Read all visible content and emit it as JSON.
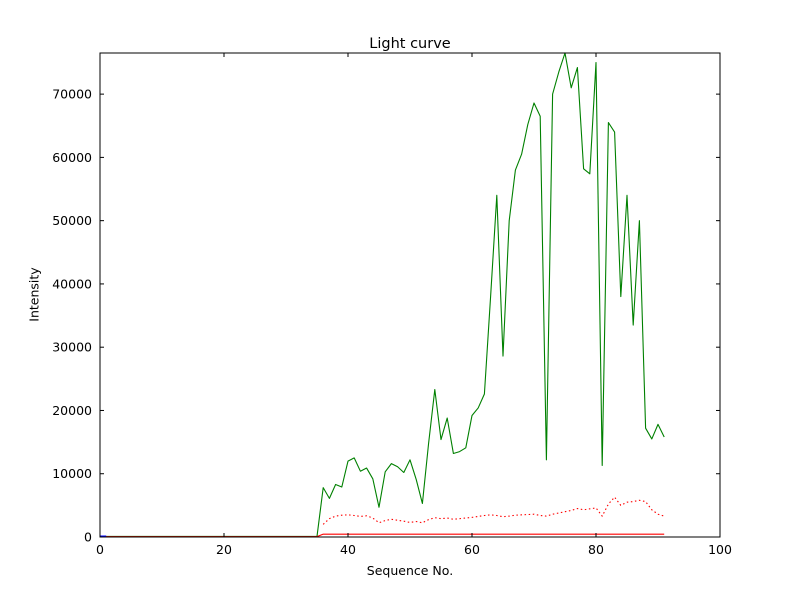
{
  "chart_data": {
    "type": "line",
    "title": "Light curve",
    "xlabel": "Sequence No.",
    "ylabel": "Intensity",
    "xlim": [
      0,
      100
    ],
    "ylim": [
      0,
      76500
    ],
    "xticks": [
      0,
      20,
      40,
      60,
      80,
      100
    ],
    "yticks": [
      0,
      10000,
      20000,
      30000,
      40000,
      50000,
      60000,
      70000
    ],
    "grid": false,
    "legend": false,
    "frame_color": "#000000",
    "background_color": "#ffffff",
    "series": [
      {
        "name": "target-intensity-green-solid",
        "color": "#008000",
        "style": "solid",
        "x": [
          0,
          35,
          36,
          37,
          38,
          39,
          40,
          41,
          42,
          43,
          44,
          45,
          46,
          47,
          48,
          49,
          50,
          51,
          52,
          53,
          54,
          55,
          56,
          57,
          58,
          59,
          60,
          61,
          62,
          63,
          64,
          65,
          66,
          67,
          68,
          69,
          70,
          71,
          72,
          73,
          74,
          75,
          76,
          77,
          78,
          79,
          80,
          81,
          82,
          83,
          84,
          85,
          86,
          87,
          88,
          89,
          90,
          91
        ],
        "y": [
          100,
          100,
          7800,
          6100,
          8300,
          7900,
          12000,
          12500,
          10400,
          10900,
          9200,
          4700,
          10300,
          11600,
          11100,
          10200,
          12200,
          9100,
          5300,
          14800,
          23300,
          15400,
          18800,
          13200,
          13500,
          14100,
          19200,
          20400,
          22600,
          38000,
          54000,
          28600,
          50000,
          58000,
          60500,
          65200,
          68600,
          66500,
          12200,
          70000,
          73500,
          76500,
          71000,
          74200,
          58200,
          57400,
          75000,
          11300,
          65500,
          64000,
          38000,
          54000,
          33500,
          50000,
          17200,
          15500,
          17800,
          15800
        ]
      },
      {
        "name": "comparison-intensity-red-dotted",
        "color": "#ff0000",
        "style": "dotted",
        "x": [
          36,
          37,
          38,
          39,
          40,
          41,
          42,
          43,
          44,
          45,
          46,
          47,
          48,
          49,
          50,
          51,
          52,
          53,
          54,
          55,
          56,
          57,
          58,
          59,
          60,
          61,
          62,
          63,
          64,
          65,
          66,
          67,
          68,
          69,
          70,
          71,
          72,
          73,
          74,
          75,
          76,
          77,
          78,
          79,
          80,
          81,
          82,
          83,
          84,
          85,
          86,
          87,
          88,
          89,
          90,
          91
        ],
        "y": [
          2000,
          2900,
          3300,
          3450,
          3500,
          3400,
          3250,
          3350,
          3000,
          2250,
          2600,
          2800,
          2650,
          2500,
          2300,
          2450,
          2250,
          2750,
          3050,
          2900,
          3000,
          2800,
          2900,
          3000,
          3100,
          3250,
          3400,
          3500,
          3400,
          3200,
          3300,
          3450,
          3500,
          3550,
          3600,
          3400,
          3300,
          3600,
          3800,
          4000,
          4200,
          4500,
          4300,
          4450,
          4600,
          3300,
          5200,
          6300,
          5000,
          5500,
          5600,
          5800,
          5600,
          4300,
          3600,
          3300
        ]
      },
      {
        "name": "sky-intensity-red-solid",
        "color": "#ff0000",
        "style": "solid",
        "x": [
          0,
          35,
          36,
          91
        ],
        "y": [
          60,
          60,
          450,
          450
        ]
      },
      {
        "name": "baseline-blue-solid",
        "color": "#0000ff",
        "style": "solid",
        "x": [
          0,
          1
        ],
        "y": [
          150,
          150
        ]
      }
    ]
  }
}
